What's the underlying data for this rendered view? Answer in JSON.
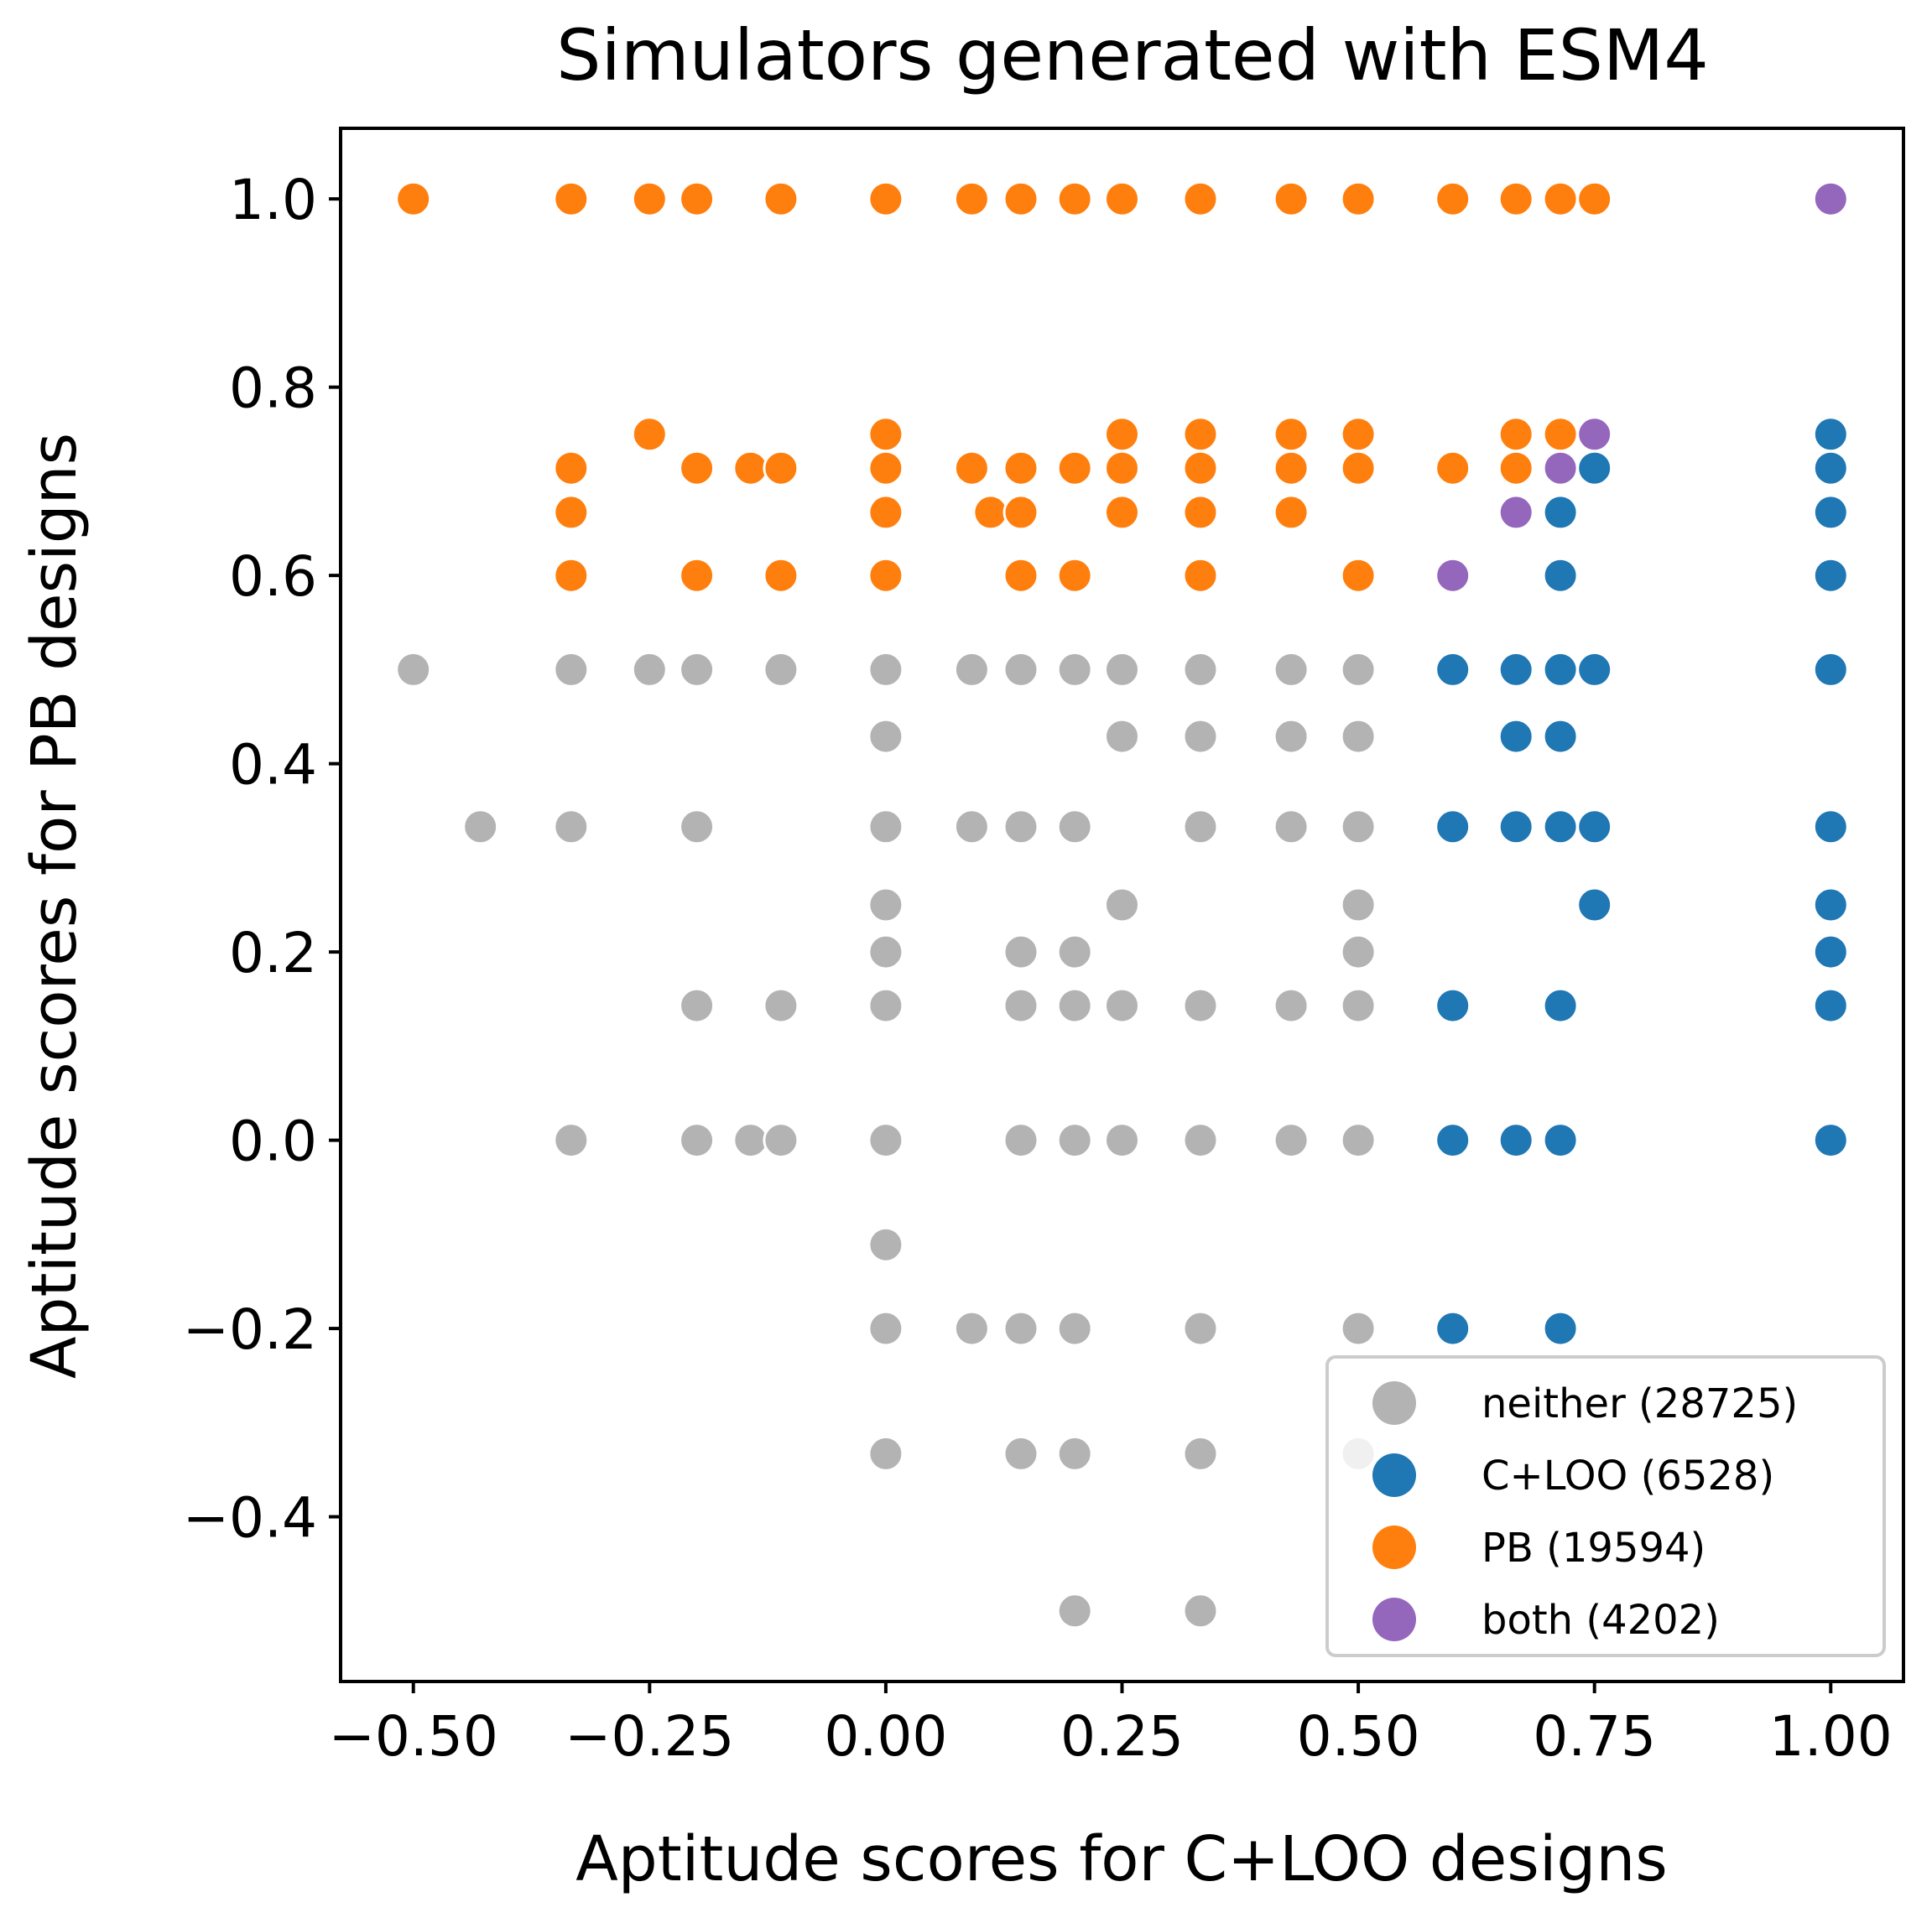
{
  "chart_data": {
    "type": "scatter",
    "title": "Simulators generated with ESM4",
    "xlabel": "Aptitude scores for C+LOO designs",
    "ylabel": "Aptitude scores for PB designs",
    "xlim": [
      -0.577,
      1.077
    ],
    "ylim": [
      -0.575,
      1.075
    ],
    "xticks": [
      -0.5,
      -0.25,
      0.0,
      0.25,
      0.5,
      0.75,
      1.0
    ],
    "xtick_labels": [
      "−0.50",
      "−0.25",
      "0.00",
      "0.25",
      "0.50",
      "0.75",
      "1.00"
    ],
    "yticks": [
      -0.4,
      -0.2,
      0.0,
      0.2,
      0.4,
      0.6,
      0.8,
      1.0
    ],
    "ytick_labels": [
      "−0.4",
      "−0.2",
      "0.0",
      "0.2",
      "0.4",
      "0.6",
      "0.8",
      "1.0"
    ],
    "grid": false,
    "legend_position": "lower-right",
    "series": [
      {
        "name": "neither (28725)",
        "color": "#b3b3b3",
        "points": [
          [
            -0.5,
            0.5
          ],
          [
            -0.333,
            0.5
          ],
          [
            -0.25,
            0.5
          ],
          [
            -0.2,
            0.5
          ],
          [
            -0.111,
            0.5
          ],
          [
            0.0,
            0.5
          ],
          [
            0.091,
            0.5
          ],
          [
            0.143,
            0.5
          ],
          [
            0.2,
            0.5
          ],
          [
            0.25,
            0.5
          ],
          [
            0.333,
            0.5
          ],
          [
            0.429,
            0.5
          ],
          [
            0.5,
            0.5
          ],
          [
            0.0,
            0.429
          ],
          [
            0.25,
            0.429
          ],
          [
            0.333,
            0.429
          ],
          [
            0.429,
            0.429
          ],
          [
            0.5,
            0.429
          ],
          [
            -0.429,
            0.333
          ],
          [
            -0.333,
            0.333
          ],
          [
            -0.2,
            0.333
          ],
          [
            0.0,
            0.333
          ],
          [
            0.091,
            0.333
          ],
          [
            0.143,
            0.333
          ],
          [
            0.2,
            0.333
          ],
          [
            0.333,
            0.333
          ],
          [
            0.429,
            0.333
          ],
          [
            0.5,
            0.333
          ],
          [
            0.0,
            0.25
          ],
          [
            0.25,
            0.25
          ],
          [
            0.5,
            0.25
          ],
          [
            0.0,
            0.2
          ],
          [
            0.143,
            0.2
          ],
          [
            0.2,
            0.2
          ],
          [
            0.5,
            0.2
          ],
          [
            -0.2,
            0.143
          ],
          [
            -0.111,
            0.143
          ],
          [
            0.0,
            0.143
          ],
          [
            0.143,
            0.143
          ],
          [
            0.2,
            0.143
          ],
          [
            0.25,
            0.143
          ],
          [
            0.333,
            0.143
          ],
          [
            0.429,
            0.143
          ],
          [
            0.5,
            0.143
          ],
          [
            -0.333,
            0.0
          ],
          [
            -0.2,
            0.0
          ],
          [
            -0.143,
            0.0
          ],
          [
            -0.111,
            0.0
          ],
          [
            0.0,
            0.0
          ],
          [
            0.143,
            0.0
          ],
          [
            0.2,
            0.0
          ],
          [
            0.25,
            0.0
          ],
          [
            0.333,
            0.0
          ],
          [
            0.429,
            0.0
          ],
          [
            0.5,
            0.0
          ],
          [
            0.0,
            -0.111
          ],
          [
            0.0,
            -0.2
          ],
          [
            0.091,
            -0.2
          ],
          [
            0.143,
            -0.2
          ],
          [
            0.2,
            -0.2
          ],
          [
            0.333,
            -0.2
          ],
          [
            0.5,
            -0.2
          ],
          [
            0.0,
            -0.333
          ],
          [
            0.143,
            -0.333
          ],
          [
            0.2,
            -0.333
          ],
          [
            0.333,
            -0.333
          ],
          [
            0.5,
            -0.333
          ],
          [
            0.2,
            -0.5
          ],
          [
            0.333,
            -0.5
          ]
        ]
      },
      {
        "name": "C+LOO (6528)",
        "color": "#1f77b4",
        "points": [
          [
            1.0,
            0.75
          ],
          [
            0.75,
            0.714
          ],
          [
            1.0,
            0.714
          ],
          [
            0.714,
            0.667
          ],
          [
            1.0,
            0.667
          ],
          [
            0.714,
            0.6
          ],
          [
            1.0,
            0.6
          ],
          [
            0.6,
            0.5
          ],
          [
            0.667,
            0.5
          ],
          [
            0.714,
            0.5
          ],
          [
            0.75,
            0.5
          ],
          [
            1.0,
            0.5
          ],
          [
            0.667,
            0.429
          ],
          [
            0.714,
            0.429
          ],
          [
            0.6,
            0.333
          ],
          [
            0.667,
            0.333
          ],
          [
            0.714,
            0.333
          ],
          [
            0.75,
            0.333
          ],
          [
            1.0,
            0.333
          ],
          [
            0.75,
            0.25
          ],
          [
            1.0,
            0.25
          ],
          [
            1.0,
            0.2
          ],
          [
            0.6,
            0.143
          ],
          [
            0.714,
            0.143
          ],
          [
            1.0,
            0.143
          ],
          [
            0.6,
            0.0
          ],
          [
            0.667,
            0.0
          ],
          [
            0.714,
            0.0
          ],
          [
            1.0,
            0.0
          ],
          [
            0.6,
            -0.2
          ],
          [
            0.714,
            -0.2
          ]
        ]
      },
      {
        "name": "PB (19594)",
        "color": "#ff7f0e",
        "points": [
          [
            -0.5,
            1.0
          ],
          [
            -0.333,
            1.0
          ],
          [
            -0.25,
            1.0
          ],
          [
            -0.2,
            1.0
          ],
          [
            -0.111,
            1.0
          ],
          [
            0.0,
            1.0
          ],
          [
            0.091,
            1.0
          ],
          [
            0.143,
            1.0
          ],
          [
            0.2,
            1.0
          ],
          [
            0.25,
            1.0
          ],
          [
            0.333,
            1.0
          ],
          [
            0.429,
            1.0
          ],
          [
            0.5,
            1.0
          ],
          [
            0.6,
            1.0
          ],
          [
            0.667,
            1.0
          ],
          [
            0.714,
            1.0
          ],
          [
            0.75,
            1.0
          ],
          [
            -0.25,
            0.75
          ],
          [
            0.0,
            0.75
          ],
          [
            0.25,
            0.75
          ],
          [
            0.333,
            0.75
          ],
          [
            0.429,
            0.75
          ],
          [
            0.5,
            0.75
          ],
          [
            0.667,
            0.75
          ],
          [
            0.714,
            0.75
          ],
          [
            -0.333,
            0.714
          ],
          [
            -0.2,
            0.714
          ],
          [
            -0.143,
            0.714
          ],
          [
            -0.111,
            0.714
          ],
          [
            0.0,
            0.714
          ],
          [
            0.091,
            0.714
          ],
          [
            0.143,
            0.714
          ],
          [
            0.2,
            0.714
          ],
          [
            0.25,
            0.714
          ],
          [
            0.333,
            0.714
          ],
          [
            0.429,
            0.714
          ],
          [
            0.5,
            0.714
          ],
          [
            0.6,
            0.714
          ],
          [
            0.667,
            0.714
          ],
          [
            -0.333,
            0.667
          ],
          [
            0.0,
            0.667
          ],
          [
            0.111,
            0.667
          ],
          [
            0.143,
            0.667
          ],
          [
            0.25,
            0.667
          ],
          [
            0.333,
            0.667
          ],
          [
            0.429,
            0.667
          ],
          [
            -0.333,
            0.6
          ],
          [
            -0.2,
            0.6
          ],
          [
            -0.111,
            0.6
          ],
          [
            0.0,
            0.6
          ],
          [
            0.143,
            0.6
          ],
          [
            0.2,
            0.6
          ],
          [
            0.333,
            0.6
          ],
          [
            0.5,
            0.6
          ]
        ]
      },
      {
        "name": "both (4202)",
        "color": "#9467bd",
        "points": [
          [
            1.0,
            1.0
          ],
          [
            0.75,
            0.75
          ],
          [
            0.714,
            0.714
          ],
          [
            0.667,
            0.667
          ],
          [
            0.6,
            0.6
          ]
        ]
      }
    ]
  }
}
